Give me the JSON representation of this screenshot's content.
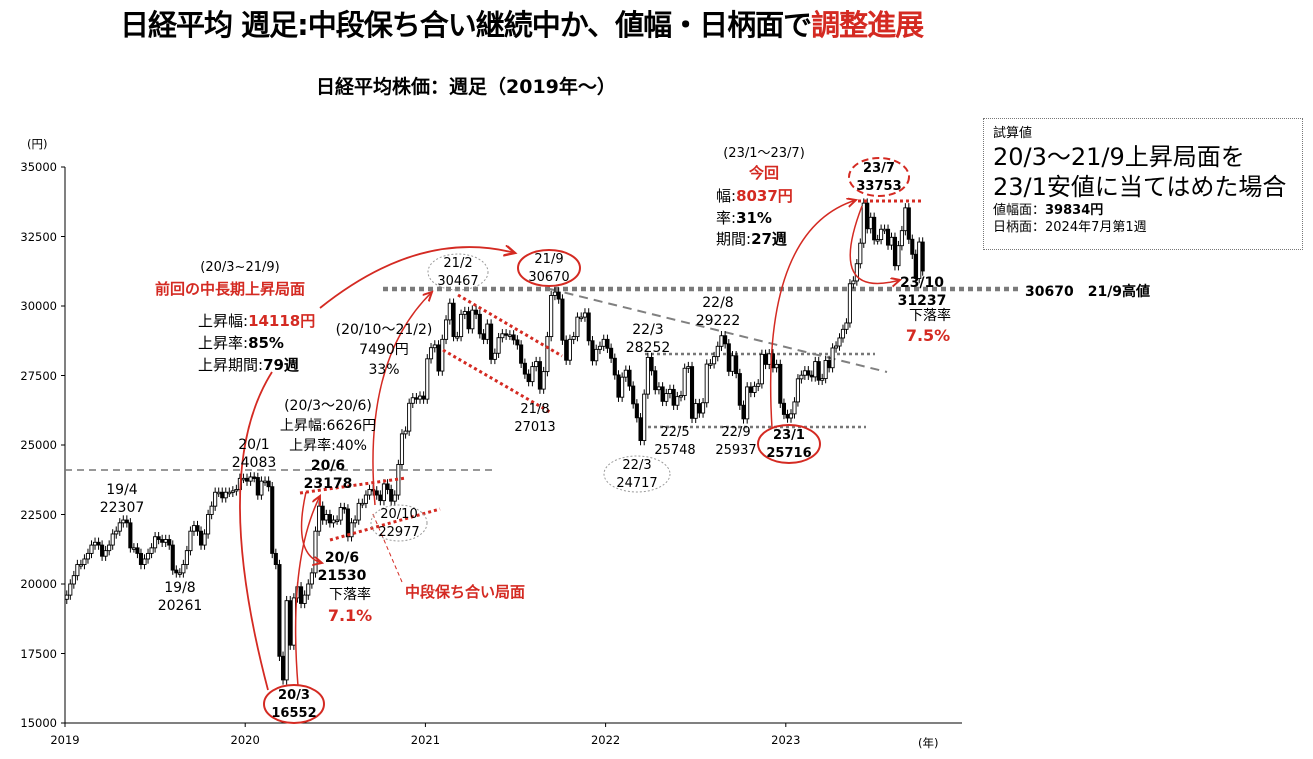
{
  "title": {
    "main": "日経平均 週足:中段保ち合い継続中か、値幅・日柄面で",
    "emphasis": "調整進展"
  },
  "subtitle": "日経平均株価：週足（2019年～）",
  "colors": {
    "accent_red": "#d42a22",
    "candle_up": "#ffffff",
    "candle_down": "#000000",
    "guide_gray": "#808080"
  },
  "chart_data": {
    "type": "candlestick",
    "title": "日経平均株価：週足（2019年～）",
    "ylabel": "(円)",
    "xlabel": "(年)",
    "ylim": [
      15000,
      35000
    ],
    "yticks": [
      "35000",
      "32500",
      "30000",
      "27500",
      "25000",
      "22500",
      "20000",
      "17500",
      "15000"
    ],
    "ytick_values": [
      35000,
      32500,
      30000,
      27500,
      25000,
      22500,
      20000,
      17500,
      15000
    ],
    "xticks": [
      "2019",
      "2020",
      "2021",
      "2022",
      "2023"
    ],
    "grid": false,
    "weekly_close_approx": {
      "2019": [
        19600,
        20000,
        20300,
        20700,
        20700,
        20900,
        21100,
        21400,
        21500,
        21400,
        21000,
        21200,
        21400,
        21800,
        21900,
        22200,
        22300,
        22200,
        21300,
        21300,
        21100,
        20700,
        20900,
        21100,
        21300,
        21700,
        21600,
        21500,
        21600,
        21400,
        20500,
        20400,
        20400,
        20700,
        21200,
        21900,
        22100,
        21900,
        21400,
        21800,
        22500,
        22800,
        23300,
        23300,
        23100,
        23300,
        23300,
        23350,
        23400,
        23800,
        23800
      ],
      "2020": [
        23700,
        23850,
        23830,
        23200,
        23700,
        23700,
        23500,
        21100,
        20700,
        17400,
        16550,
        19400,
        17800,
        19500,
        19900,
        19300,
        19600,
        20000,
        20400,
        21900,
        22800,
        22300,
        22500,
        22200,
        22300,
        22300,
        22750,
        22700,
        21700,
        22200,
        22300,
        22900,
        22900,
        23200,
        23400,
        23350,
        23200,
        23000,
        23600,
        23400,
        22980,
        23200,
        24300,
        25400,
        25500,
        26500,
        26700,
        26650,
        26760,
        26650
      ],
      "2021": [
        28100,
        28500,
        28600,
        27660,
        28800,
        29500,
        30100,
        28900,
        28900,
        29700,
        29800,
        29180,
        29850,
        29700,
        29000,
        28800,
        29350,
        28080,
        28300,
        28860,
        29000,
        28950,
        28960,
        28780,
        28600,
        27940,
        27550,
        27280,
        27820,
        28000,
        27010,
        27640,
        28900,
        30380,
        30500,
        30250,
        28770,
        28050,
        28800,
        28900,
        29600,
        29600,
        29750,
        28750,
        28030,
        28440,
        28550,
        28800
      ],
      "2022": [
        28480,
        28120,
        27520,
        26720,
        27440,
        27690,
        27120,
        26480,
        25980,
        25160,
        26830,
        28150,
        27670,
        26990,
        27090,
        26570,
        26850,
        27000,
        26430,
        26740,
        26780,
        27760,
        27820,
        25960,
        26490,
        26150,
        26520,
        27910,
        27920,
        28180,
        28550,
        28930,
        28640,
        27650,
        28210,
        27570,
        26430,
        25940,
        27090,
        26890,
        27110,
        27200,
        28260,
        27900,
        28280,
        27780,
        27900,
        26500,
        26100
      ],
      "2023": [
        25970,
        26120,
        26550,
        27380,
        27510,
        27670,
        27510,
        27450,
        28000,
        27330,
        27390,
        28040,
        27780,
        28490,
        28560,
        28850,
        29160,
        29390,
        30800,
        30900,
        31520,
        32260,
        33700,
        32780,
        33190,
        32380,
        32390,
        32760,
        32760,
        32190,
        32470,
        31450,
        32170,
        32710,
        33530,
        32400,
        31860,
        30990,
        32300,
        31260
      ]
    },
    "reference_lines": [
      {
        "value": 30670,
        "label": "30670　21/9高値",
        "style": "thick-dotted"
      },
      {
        "value": 24083,
        "style": "dashed"
      },
      {
        "value": 28252,
        "style": "dotted"
      },
      {
        "value": 25748,
        "style": "dotted"
      }
    ]
  },
  "annotations": {
    "a19_4": [
      "19/4",
      "22307"
    ],
    "a19_8": [
      "19/8",
      "20261"
    ],
    "a20_1": [
      "20/1",
      "24083"
    ],
    "prev_period": "(20/3~21/9)",
    "prev_heading": "前回の中長期上昇局面",
    "prev_rise_label": "上昇幅:",
    "prev_rise_value": "14118円",
    "prev_rate_label": "上昇率:",
    "prev_rate_value": "85%",
    "prev_len_label": "上昇期間:",
    "prev_len_value": "79週",
    "a2010": [
      "(20/10～21/2)",
      "7490円",
      "33%"
    ],
    "a2003_2006": [
      "(20/3～20/6)",
      "上昇幅:6626円",
      "上昇率:40%"
    ],
    "a20_6_high": [
      "20/6",
      "23178"
    ],
    "a20_10": [
      "20/10",
      "22977"
    ],
    "a20_6_low": [
      "20/6",
      "21530"
    ],
    "a20_6_drop_label": "下落率",
    "a20_6_drop_value": "7.1%",
    "mid_consolidation": "中段保ち合い局面",
    "a20_3": [
      "20/3",
      "16552"
    ],
    "a21_2": [
      "21/2",
      "30467"
    ],
    "a21_9": [
      "21/9",
      "30670"
    ],
    "a21_8": [
      "21/8",
      "27013"
    ],
    "a22_3h": [
      "22/3",
      "28252"
    ],
    "a22_8": [
      "22/8",
      "29222"
    ],
    "a22_3l": [
      "22/3",
      "24717"
    ],
    "a22_5": [
      "22/5",
      "25748"
    ],
    "a22_9": [
      "22/9",
      "25937"
    ],
    "a23_1": [
      "23/1",
      "25716"
    ],
    "cur_period": "(23/1～23/7)",
    "cur_heading": "今回",
    "cur_width_label": "幅:",
    "cur_width_value": "8037円",
    "cur_rate_label": "率:",
    "cur_rate_value": "31%",
    "cur_len_label": "期間:",
    "cur_len_value": "27週",
    "a23_7": [
      "23/7",
      "33753"
    ],
    "a23_10": [
      "23/10",
      "31237"
    ],
    "a23_10_drop_label": "下落率",
    "a23_10_drop_value": "7.5%",
    "level_label": "30670　21/9高値"
  },
  "estimate_box": {
    "heading": "試算値",
    "line1": "20/3～21/9上昇局面を",
    "line2": "23/1安値に当てはめた場合",
    "price_label": "値幅面：",
    "price_value": "39834円",
    "time_label": "日柄面：",
    "time_value": "2024年7月第1週"
  }
}
